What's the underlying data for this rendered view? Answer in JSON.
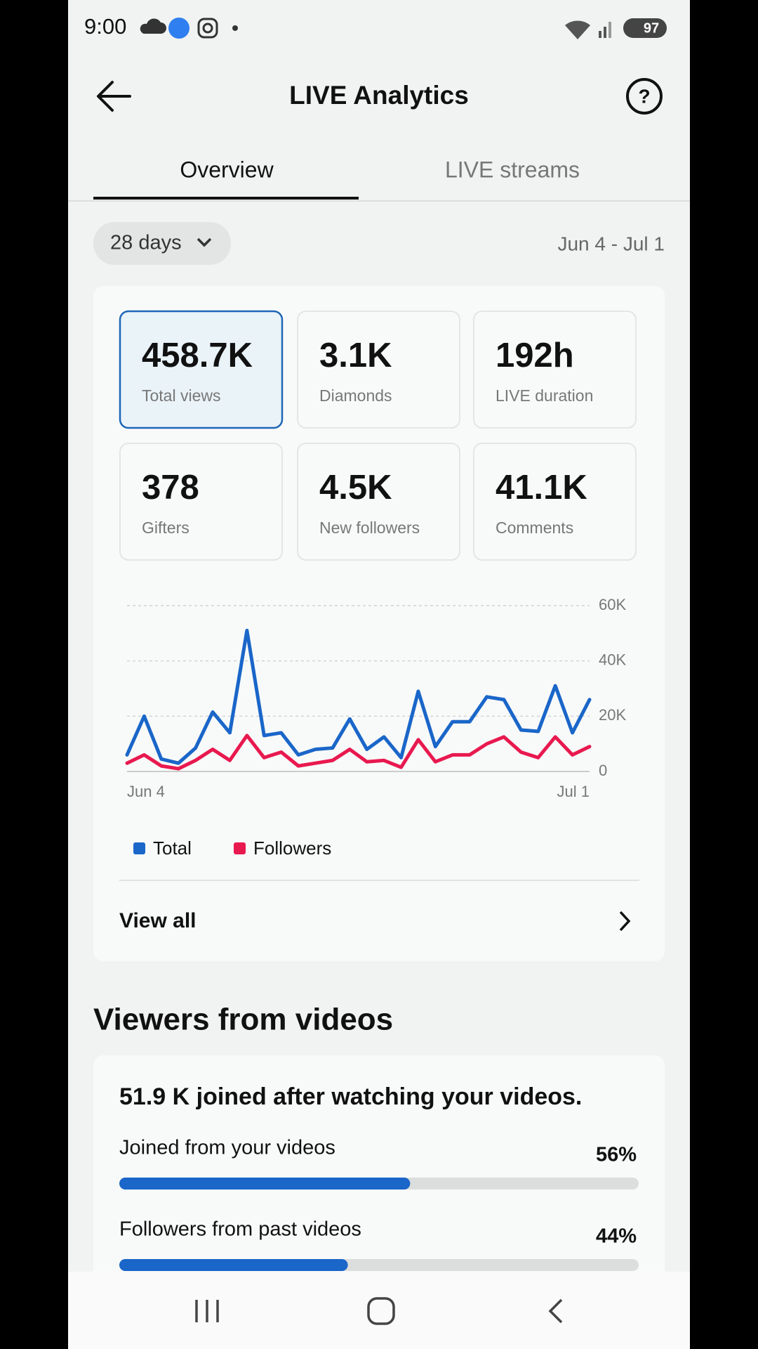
{
  "status_bar": {
    "time": "9:00",
    "battery": "97"
  },
  "header": {
    "title": "LIVE Analytics"
  },
  "tabs": [
    "Overview",
    "LIVE streams"
  ],
  "filter": {
    "period": "28 days",
    "date_range": "Jun 4 - Jul 1"
  },
  "stats": [
    {
      "value": "458.7K",
      "label": "Total views"
    },
    {
      "value": "3.1K",
      "label": "Diamonds"
    },
    {
      "value": "192h",
      "label": "LIVE duration"
    },
    {
      "value": "378",
      "label": "Gifters"
    },
    {
      "value": "4.5K",
      "label": "New followers"
    },
    {
      "value": "41.1K",
      "label": "Comments"
    }
  ],
  "chart_data": {
    "type": "line",
    "categories": [
      "Jun 4",
      null,
      null,
      null,
      null,
      null,
      null,
      null,
      null,
      null,
      null,
      null,
      null,
      null,
      null,
      null,
      null,
      null,
      null,
      null,
      null,
      null,
      null,
      null,
      null,
      null,
      null,
      "Jul 1"
    ],
    "series": [
      {
        "name": "Total",
        "color": "#1a66c9",
        "values": [
          6000,
          20000,
          4500,
          3000,
          8500,
          21500,
          14000,
          51000,
          13000,
          14000,
          6000,
          8000,
          8500,
          19000,
          8000,
          12500,
          5000,
          29000,
          9000,
          18000,
          18000,
          27000,
          26000,
          15000,
          14500,
          31000,
          14000,
          26000
        ]
      },
      {
        "name": "Followers",
        "color": "#e8194f",
        "values": [
          3000,
          6000,
          2000,
          1000,
          4000,
          8000,
          4000,
          13000,
          5000,
          7000,
          2000,
          3000,
          4000,
          8000,
          3500,
          4000,
          1500,
          11500,
          3500,
          6000,
          6000,
          10000,
          12500,
          7000,
          5000,
          12500,
          6000,
          9000
        ]
      }
    ],
    "ylim": [
      0,
      60000
    ],
    "yticks": [
      {
        "value": 0,
        "label": "0"
      },
      {
        "value": 20000,
        "label": "20K"
      },
      {
        "value": 40000,
        "label": "40K"
      },
      {
        "value": 60000,
        "label": "60K"
      }
    ],
    "grid": true
  },
  "view_all": "View all",
  "viewers_section": {
    "title": "Viewers from videos",
    "summary": "51.9 K joined after watching your videos.",
    "bars": [
      {
        "label": "Joined from your videos",
        "value": 56,
        "value_label": "56%"
      },
      {
        "label": "Followers from past videos",
        "value": 44,
        "value_label": "44%"
      }
    ]
  }
}
